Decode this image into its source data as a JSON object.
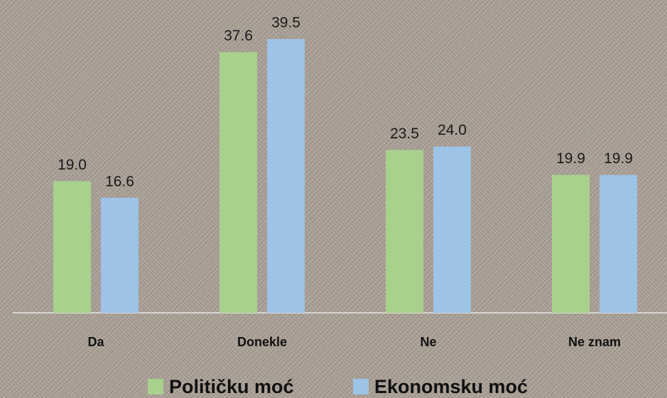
{
  "chart_data": {
    "type": "bar",
    "categories": [
      "Da",
      "Donekle",
      "Ne",
      "Ne znam"
    ],
    "series": [
      {
        "name": "Političku moć",
        "color": "#a9d18e",
        "values": [
          19.0,
          37.6,
          23.5,
          19.9
        ],
        "value_labels": [
          "19.0",
          "37.6",
          "23.5",
          "19.9"
        ]
      },
      {
        "name": "Ekonomsku moć",
        "color": "#9dc3e6",
        "values": [
          16.6,
          39.5,
          24.0,
          19.9
        ],
        "value_labels": [
          "16.6",
          "39.5",
          "24.0",
          "19.9"
        ]
      }
    ],
    "legend": "bottom"
  }
}
